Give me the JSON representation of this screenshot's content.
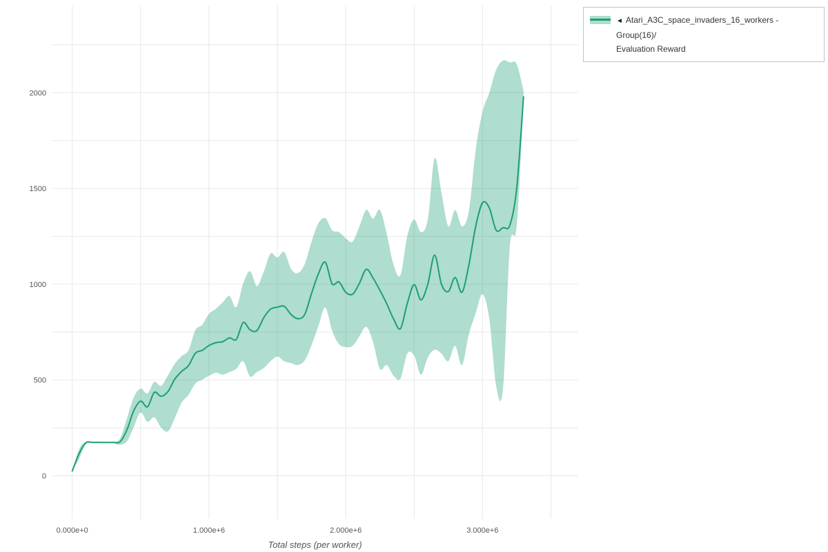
{
  "page": {
    "background": "#ffffff"
  },
  "legend": {
    "collapse_icon": "◄",
    "line1": "Atari_A3C_space_invaders_16_workers - Group(16)/",
    "line2": "Evaluation Reward"
  },
  "chart_data": {
    "type": "line",
    "title": "",
    "xlabel": "Total steps (per worker)",
    "ylabel": "",
    "legend_entries": [
      "Atari_A3C_space_invaders_16_workers - Group(16)/ Evaluation Reward"
    ],
    "legend_position": "top-right-outside",
    "grid_on": true,
    "line_color": "#1b9e77",
    "band_color": "#1b9e77",
    "band_opacity": 0.35,
    "grid": {
      "color": "#e7e7e7",
      "x_step": 500000,
      "y_step": 250,
      "x_start": 0,
      "x_end": 3500000,
      "y_start": 0,
      "y_end": 2250
    },
    "xlim": [
      -150000,
      3700000
    ],
    "ylim": [
      -225,
      2455
    ],
    "x_tick_values": [
      0,
      1000000,
      2000000,
      3000000
    ],
    "x_tick_labels": [
      "0.000e+0",
      "1.000e+6",
      "2.000e+6",
      "3.000e+6"
    ],
    "y_tick_values": [
      0,
      500,
      1000,
      1500,
      2000
    ],
    "y_tick_labels": [
      "0",
      "500",
      "1000",
      "1500",
      "2000"
    ],
    "series": [
      {
        "name": "Evaluation Reward (mean with min/max band)",
        "x": [
          0,
          50000,
          100000,
          150000,
          200000,
          250000,
          300000,
          350000,
          400000,
          450000,
          500000,
          550000,
          600000,
          650000,
          700000,
          750000,
          800000,
          850000,
          900000,
          950000,
          1000000,
          1050000,
          1100000,
          1150000,
          1200000,
          1250000,
          1300000,
          1350000,
          1400000,
          1450000,
          1500000,
          1550000,
          1600000,
          1650000,
          1700000,
          1750000,
          1800000,
          1850000,
          1900000,
          1950000,
          2000000,
          2050000,
          2100000,
          2150000,
          2200000,
          2250000,
          2300000,
          2350000,
          2400000,
          2450000,
          2500000,
          2550000,
          2600000,
          2650000,
          2700000,
          2750000,
          2800000,
          2850000,
          2900000,
          2950000,
          3000000,
          3050000,
          3100000,
          3150000,
          3200000,
          3250000,
          3300000
        ],
        "mean": [
          25,
          115,
          172,
          174,
          174,
          174,
          174,
          178,
          240,
          340,
          390,
          360,
          435,
          415,
          440,
          505,
          545,
          575,
          640,
          655,
          680,
          695,
          700,
          720,
          712,
          800,
          762,
          758,
          825,
          870,
          880,
          885,
          842,
          820,
          842,
          952,
          1055,
          1115,
          1002,
          1012,
          958,
          948,
          1005,
          1078,
          1032,
          968,
          898,
          818,
          768,
          900,
          998,
          918,
          1000,
          1152,
          1000,
          962,
          1035,
          958,
          1100,
          1302,
          1425,
          1398,
          1282,
          1295,
          1308,
          1500,
          1978
        ],
        "upper": [
          25,
          140,
          178,
          177,
          177,
          177,
          177,
          195,
          300,
          410,
          455,
          430,
          490,
          470,
          525,
          585,
          625,
          655,
          760,
          788,
          845,
          872,
          905,
          938,
          880,
          1005,
          1068,
          990,
          1065,
          1160,
          1140,
          1168,
          1080,
          1058,
          1105,
          1222,
          1318,
          1345,
          1282,
          1272,
          1240,
          1222,
          1302,
          1388,
          1342,
          1388,
          1262,
          1100,
          1048,
          1252,
          1338,
          1272,
          1338,
          1658,
          1478,
          1302,
          1388,
          1302,
          1382,
          1700,
          1900,
          2000,
          2120,
          2168,
          2158,
          2150,
          2010
        ],
        "lower": [
          25,
          88,
          168,
          171,
          171,
          171,
          171,
          162,
          180,
          255,
          330,
          282,
          305,
          252,
          232,
          302,
          382,
          422,
          482,
          502,
          522,
          538,
          528,
          542,
          558,
          598,
          518,
          542,
          562,
          598,
          622,
          598,
          588,
          578,
          602,
          682,
          782,
          878,
          758,
          688,
          672,
          678,
          728,
          778,
          698,
          558,
          578,
          522,
          508,
          638,
          628,
          528,
          618,
          658,
          638,
          598,
          678,
          578,
          738,
          848,
          948,
          818,
          468,
          455,
          1198,
          1302,
          1945
        ]
      }
    ]
  }
}
